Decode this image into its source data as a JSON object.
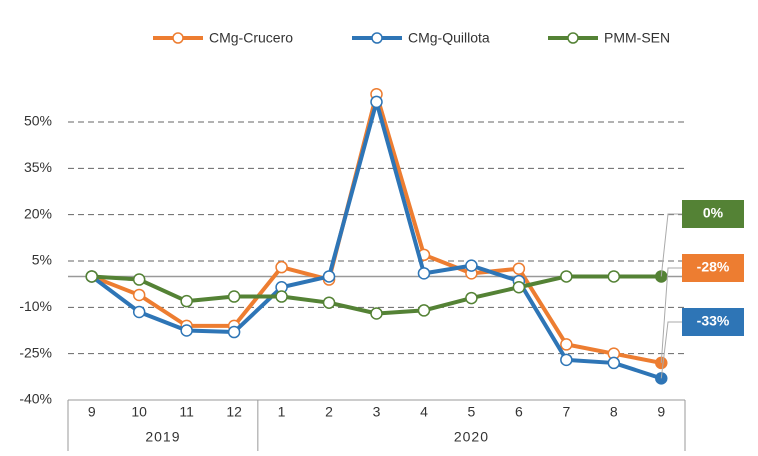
{
  "chart_data": {
    "type": "line",
    "categories": [
      "9",
      "10",
      "11",
      "12",
      "1",
      "2",
      "3",
      "4",
      "5",
      "6",
      "7",
      "8",
      "9"
    ],
    "groups": [
      {
        "name": "2019",
        "count": 4
      },
      {
        "name": "2020",
        "count": 9
      }
    ],
    "series": [
      {
        "name": "CMg-Crucero",
        "color": "#ed7d31",
        "values": [
          0,
          -6,
          -16,
          -16,
          3,
          -1,
          59,
          7,
          1,
          2.5,
          -22,
          -25,
          -28
        ],
        "end_label": "-28%"
      },
      {
        "name": "CMg-Quillota",
        "color": "#2e75b6",
        "values": [
          0,
          -11.5,
          -17.5,
          -18,
          -3.5,
          0,
          56.5,
          1,
          3.5,
          -1.5,
          -27,
          -28,
          -33
        ],
        "end_label": "-33%"
      },
      {
        "name": "PMM-SEN",
        "color": "#548235",
        "values": [
          0,
          -1,
          -8,
          -6.5,
          -6.5,
          -8.5,
          -12,
          -11,
          -7,
          -3.5,
          0,
          0,
          0
        ],
        "end_label": "0%"
      }
    ],
    "ylim": [
      -40,
      65
    ],
    "yticks": [
      {
        "value": -40,
        "label": "-40%"
      },
      {
        "value": -25,
        "label": "-25%"
      },
      {
        "value": -10,
        "label": "-10%"
      },
      {
        "value": 5,
        "label": "5%"
      },
      {
        "value": 20,
        "label": "20%"
      },
      {
        "value": 35,
        "label": "35%"
      },
      {
        "value": 50,
        "label": "50%"
      }
    ],
    "grid": true,
    "legend": "top"
  }
}
